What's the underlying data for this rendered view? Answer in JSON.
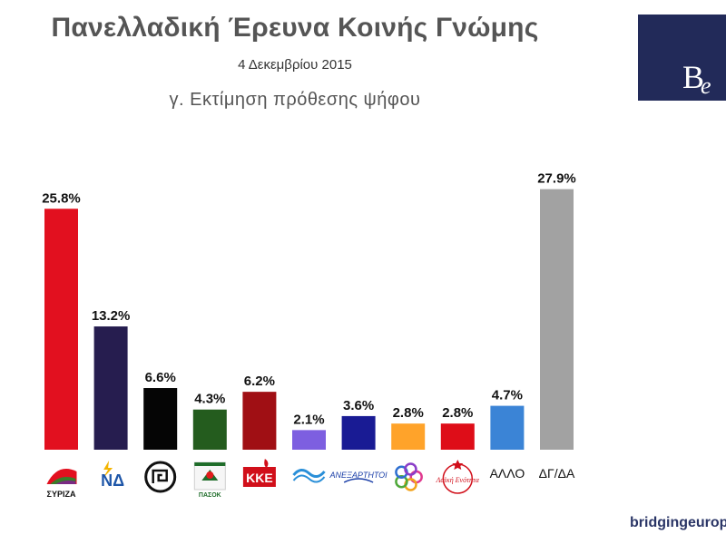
{
  "header": {
    "title": "Πανελλαδική Έρευνα Κοινής Γνώμης",
    "date": "4 Δεκεμβρίου 2015",
    "subtitle": "γ. Εκτίμηση πρόθεσης ψήφου"
  },
  "logo": {
    "text_b": "B",
    "text_e": "e"
  },
  "footer": {
    "text": "bridgingeurope.net"
  },
  "chart_data": {
    "type": "bar",
    "title": "γ. Εκτίμηση πρόθεσης ψήφου",
    "categories": [
      "ΣΥΡΙΖΑ",
      "ΝΔ",
      "ΧΑ",
      "ΠΑΣΟΚ",
      "ΚΚΕ",
      "ΠΟΤΑΜΙ",
      "ΑΝΕΞΑΡΤΗΤΟΙ ΕΛΛΗΝΕΣ",
      "ΕΝΩΣΗ ΚΕΝΤΡΩΩΝ",
      "ΛΑΪΚΗ ΕΝΟΤΗΤΑ",
      "ΑΛΛΟ",
      "ΔΓ/ΔΑ"
    ],
    "values": [
      25.8,
      13.2,
      6.6,
      4.3,
      6.2,
      2.1,
      3.6,
      2.8,
      2.8,
      4.7,
      27.9
    ],
    "value_labels": [
      "25.8%",
      "13.2%",
      "6.6%",
      "4.3%",
      "6.2%",
      "2.1%",
      "3.6%",
      "2.8%",
      "2.8%",
      "4.7%",
      "27.9%"
    ],
    "colors": [
      "#e2101f",
      "#261d4f",
      "#050505",
      "#245c1e",
      "#a00f14",
      "#7d5fe0",
      "#191b94",
      "#ffa32a",
      "#de0d18",
      "#3b84d6",
      "#a2a2a2"
    ],
    "xlabel": "",
    "ylabel": "",
    "ylim": [
      0,
      30
    ],
    "grid": false,
    "text_category_labels": {
      "9": "ΑΛΛΟ",
      "10": "ΔΓ/ΔΑ"
    },
    "logo_labels": {
      "0": "ΣΥΡΙΖΑ",
      "1": "ΝΔ",
      "3": "ΠΑΣΟΚ",
      "4": "ΚΚΕ",
      "6": "ΑΝΕΞΑΡΤΗΤΟΙ",
      "7": "",
      "8": "Λαϊκή Ενότητα"
    }
  }
}
